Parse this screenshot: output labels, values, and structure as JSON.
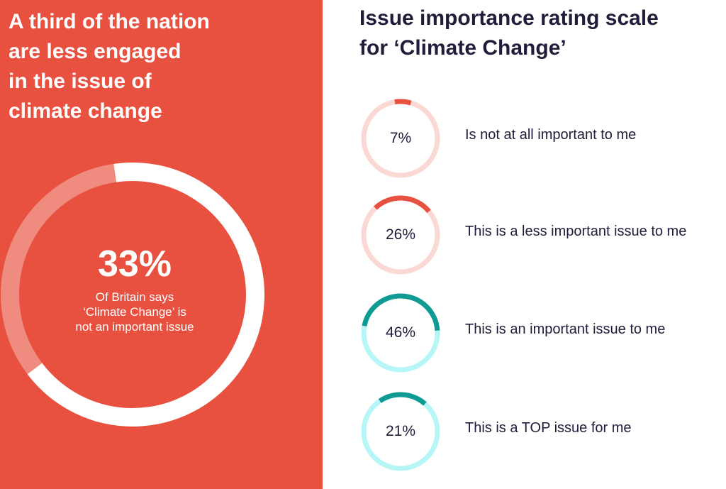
{
  "headline": [
    "A third of the nation",
    "are less engaged",
    "in the issue of",
    "climate change"
  ],
  "summary": {
    "value": "33%",
    "caption": [
      "Of Britain says",
      "‘Climate Change’ is",
      "not an important issue"
    ]
  },
  "title": [
    "Issue importance rating scale",
    "for ‘Climate Change’"
  ],
  "colors": {
    "background_left": "#e8503f",
    "red": "#e8503f",
    "red_light": "#fad9d4",
    "teal": "#0d9b93",
    "teal_light": "#b6f6f6",
    "white_track": "#f08b7f",
    "text_dark": "#1f1d3a"
  },
  "chart_data": [
    {
      "type": "pie",
      "title": "",
      "slices": [
        {
          "label": "Of Britain says ‘Climate Change’ is not an important issue",
          "value": 33,
          "color": "#f08b7f"
        },
        {
          "label": "",
          "value": 67,
          "color": "#ffffff"
        }
      ]
    },
    {
      "type": "pie",
      "title": "Issue importance rating scale for ‘Climate Change’",
      "categories": [
        "Is not at all important to me",
        "This is a less important issue to me",
        "This is an important issue to me",
        "This is a TOP issue for me"
      ],
      "values": [
        7,
        26,
        46,
        21
      ],
      "labels": [
        "7%",
        "26%",
        "46%",
        "21%"
      ],
      "colors": [
        "#e8503f",
        "#e8503f",
        "#0d9b93",
        "#0d9b93"
      ],
      "track_colors": [
        "#fad9d4",
        "#fad9d4",
        "#b6f6f6",
        "#b6f6f6"
      ]
    }
  ]
}
